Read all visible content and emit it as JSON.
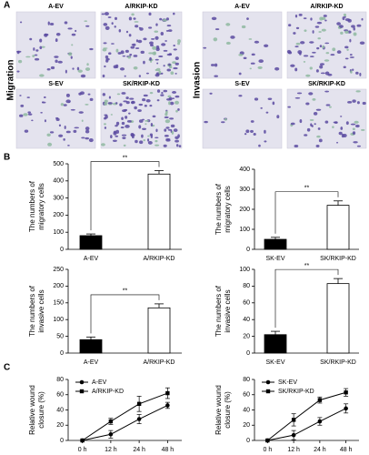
{
  "figure": {
    "panel_letters": [
      "A",
      "B",
      "C"
    ],
    "row_labels": [
      "Migration",
      "Invasion"
    ],
    "images": [
      "A-EV",
      "A/RKIP-KD",
      "S-EV",
      "SK/RKIP-KD",
      "A-EV",
      "A/RKIP-KD",
      "S-EV",
      "SK/RKIP-KD"
    ]
  },
  "chart_data": [
    {
      "type": "bar",
      "ylabel": [
        "The numbers of",
        "migratory cells"
      ],
      "categories": [
        "A-EV",
        "A/RKIP-KD"
      ],
      "values": [
        80,
        440
      ],
      "errors": [
        10,
        20
      ],
      "colors": [
        "#000000",
        "#ffffff"
      ],
      "ylim": [
        0,
        500
      ],
      "yticks": [
        0,
        100,
        200,
        300,
        400,
        500
      ],
      "annotation": "**"
    },
    {
      "type": "bar",
      "ylabel": [
        "The numbers of",
        "migratory cells"
      ],
      "categories": [
        "SK-EV",
        "SK/RKIP-KD"
      ],
      "values": [
        50,
        220
      ],
      "errors": [
        10,
        22
      ],
      "colors": [
        "#000000",
        "#ffffff"
      ],
      "ylim": [
        0,
        400
      ],
      "yticks": [
        0,
        100,
        200,
        300,
        400
      ],
      "annotation": "**"
    },
    {
      "type": "bar",
      "ylabel": [
        "The numbers of",
        "invasive cells"
      ],
      "categories": [
        "A-EV",
        "A/RKIP-KD"
      ],
      "values": [
        40,
        135
      ],
      "errors": [
        8,
        12
      ],
      "colors": [
        "#000000",
        "#ffffff"
      ],
      "ylim": [
        0,
        250
      ],
      "yticks": [
        0,
        50,
        100,
        150,
        200,
        250
      ],
      "annotation": "**"
    },
    {
      "type": "bar",
      "ylabel": [
        "The numbers of",
        "invasive cells"
      ],
      "categories": [
        "SK-EV",
        "SK/RKIP-KD"
      ],
      "values": [
        22,
        83
      ],
      "errors": [
        4,
        6
      ],
      "colors": [
        "#000000",
        "#ffffff"
      ],
      "ylim": [
        0,
        100
      ],
      "yticks": [
        0,
        20,
        40,
        60,
        80,
        100
      ],
      "annotation": "**"
    },
    {
      "type": "line",
      "ylabel": [
        "Relative wound",
        "closure (%)"
      ],
      "categories": [
        "0 h",
        "12 h",
        "24 h",
        "48 h"
      ],
      "series": [
        {
          "name": "A-EV",
          "color": "#000000",
          "marker": "circle",
          "values": [
            0,
            8,
            28,
            46
          ],
          "errors": [
            0,
            5,
            6,
            4
          ]
        },
        {
          "name": "A/RKIP-KD",
          "color": "#000000",
          "marker": "square",
          "values": [
            0,
            25,
            48,
            62
          ],
          "errors": [
            0,
            4,
            10,
            7
          ]
        }
      ],
      "ylim": [
        0,
        80
      ],
      "yticks": [
        0,
        20,
        40,
        60,
        80
      ],
      "legend": "upper left"
    },
    {
      "type": "line",
      "ylabel": [
        "Relative wound",
        "closure (%)"
      ],
      "categories": [
        "0 h",
        "12 h",
        "24 h",
        "48 h"
      ],
      "series": [
        {
          "name": "SK-EV",
          "color": "#000000",
          "marker": "circle",
          "values": [
            0,
            7,
            25,
            42
          ],
          "errors": [
            0,
            6,
            5,
            6
          ]
        },
        {
          "name": "SK/RKIP-KD",
          "color": "#000000",
          "marker": "square",
          "values": [
            0,
            27,
            53,
            63
          ],
          "errors": [
            0,
            8,
            4,
            5
          ]
        }
      ],
      "ylim": [
        0,
        80
      ],
      "yticks": [
        0,
        20,
        40,
        60,
        80
      ],
      "legend": "upper left"
    }
  ]
}
